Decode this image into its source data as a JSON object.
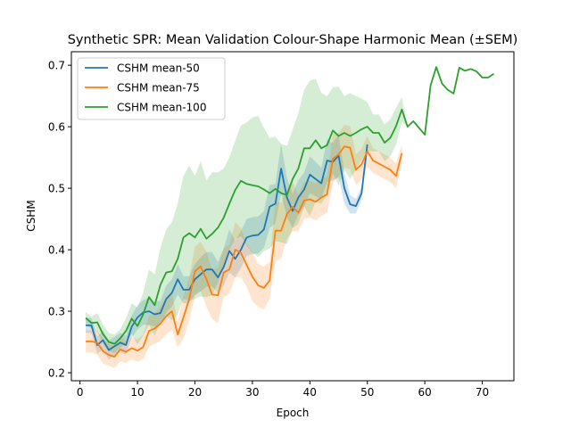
{
  "chart_data": {
    "type": "line",
    "title": "Synthetic SPR: Mean Validation Colour-Shape Harmonic Mean (±SEM)",
    "xlabel": "Epoch",
    "ylabel": "CSHM",
    "xlim": [
      -1.5,
      75.5
    ],
    "ylim": [
      0.187,
      0.722
    ],
    "xticks": [
      0,
      10,
      20,
      30,
      40,
      50,
      60,
      70
    ],
    "yticks": [
      0.2,
      0.3,
      0.4,
      0.5,
      0.6,
      0.7
    ],
    "grid": false,
    "legend_position": "upper-left",
    "series": [
      {
        "name": "CSHM mean-50",
        "color": "#1f77b4",
        "x": [
          1,
          2,
          3,
          4,
          5,
          6,
          7,
          8,
          9,
          10,
          11,
          12,
          13,
          14,
          15,
          16,
          17,
          18,
          19,
          20,
          21,
          22,
          23,
          24,
          25,
          26,
          27,
          28,
          29,
          30,
          31,
          32,
          33,
          34,
          35,
          36,
          37,
          38,
          39,
          40,
          41,
          42,
          43,
          44,
          45,
          46,
          47,
          48,
          49,
          50
        ],
        "y": [
          0.277,
          0.277,
          0.245,
          0.253,
          0.237,
          0.243,
          0.249,
          0.245,
          0.275,
          0.29,
          0.298,
          0.3,
          0.295,
          0.297,
          0.32,
          0.33,
          0.352,
          0.335,
          0.335,
          0.352,
          0.36,
          0.368,
          0.368,
          0.355,
          0.372,
          0.398,
          0.385,
          0.4,
          0.42,
          0.423,
          0.424,
          0.433,
          0.47,
          0.475,
          0.532,
          0.485,
          0.463,
          0.485,
          0.498,
          0.522,
          0.515,
          0.508,
          0.545,
          0.543,
          0.553,
          0.5,
          0.474,
          0.471,
          0.492,
          0.571
        ],
        "err": [
          0.012,
          0.012,
          0.014,
          0.015,
          0.016,
          0.015,
          0.016,
          0.015,
          0.018,
          0.02,
          0.02,
          0.022,
          0.02,
          0.02,
          0.022,
          0.022,
          0.025,
          0.022,
          0.022,
          0.025,
          0.028,
          0.028,
          0.028,
          0.025,
          0.03,
          0.035,
          0.03,
          0.03,
          0.03,
          0.03,
          0.03,
          0.03,
          0.035,
          0.032,
          0.04,
          0.032,
          0.028,
          0.028,
          0.028,
          0.03,
          0.028,
          0.025,
          0.035,
          0.03,
          0.035,
          0.025,
          0.015,
          0.012,
          0.01,
          0.005
        ]
      },
      {
        "name": "CSHM mean-75",
        "color": "#ff7f0e",
        "x": [
          1,
          2,
          3,
          4,
          5,
          6,
          7,
          8,
          9,
          10,
          11,
          12,
          13,
          14,
          15,
          16,
          17,
          18,
          19,
          20,
          21,
          22,
          23,
          24,
          25,
          26,
          27,
          28,
          29,
          30,
          31,
          32,
          33,
          34,
          35,
          36,
          37,
          38,
          39,
          40,
          41,
          42,
          43,
          44,
          45,
          46,
          47,
          48,
          49,
          50,
          51,
          52,
          53,
          54,
          55,
          56
        ],
        "y": [
          0.251,
          0.251,
          0.249,
          0.235,
          0.229,
          0.226,
          0.238,
          0.234,
          0.24,
          0.236,
          0.242,
          0.268,
          0.272,
          0.28,
          0.292,
          0.3,
          0.262,
          0.29,
          0.32,
          0.365,
          0.373,
          0.352,
          0.327,
          0.326,
          0.363,
          0.368,
          0.4,
          0.395,
          0.375,
          0.356,
          0.342,
          0.338,
          0.35,
          0.431,
          0.431,
          0.458,
          0.47,
          0.46,
          0.48,
          0.482,
          0.478,
          0.485,
          0.49,
          0.548,
          0.555,
          0.568,
          0.566,
          0.53,
          0.539,
          0.56,
          0.545,
          0.54,
          0.535,
          0.53,
          0.52,
          0.557
        ],
        "err": [
          0.018,
          0.018,
          0.02,
          0.02,
          0.018,
          0.018,
          0.02,
          0.018,
          0.018,
          0.018,
          0.02,
          0.025,
          0.025,
          0.028,
          0.03,
          0.03,
          0.02,
          0.035,
          0.035,
          0.04,
          0.04,
          0.045,
          0.04,
          0.045,
          0.04,
          0.04,
          0.045,
          0.04,
          0.035,
          0.04,
          0.035,
          0.035,
          0.03,
          0.05,
          0.045,
          0.04,
          0.04,
          0.03,
          0.03,
          0.03,
          0.03,
          0.03,
          0.03,
          0.04,
          0.035,
          0.035,
          0.035,
          0.025,
          0.025,
          0.025,
          0.02,
          0.02,
          0.02,
          0.02,
          0.02,
          0.015
        ]
      },
      {
        "name": "CSHM mean-100",
        "color": "#2ca02c",
        "x": [
          1,
          2,
          3,
          4,
          5,
          6,
          7,
          8,
          9,
          10,
          11,
          12,
          13,
          14,
          15,
          16,
          17,
          18,
          19,
          20,
          21,
          22,
          23,
          24,
          25,
          26,
          27,
          28,
          29,
          30,
          31,
          32,
          33,
          34,
          35,
          36,
          37,
          38,
          39,
          40,
          41,
          42,
          43,
          44,
          45,
          46,
          47,
          48,
          49,
          50,
          51,
          52,
          53,
          54,
          55,
          56,
          57,
          58,
          59,
          60,
          61,
          62,
          63,
          64,
          65,
          66,
          67,
          68,
          69,
          70,
          71,
          72
        ],
        "y": [
          0.289,
          0.281,
          0.282,
          0.263,
          0.25,
          0.247,
          0.256,
          0.268,
          0.288,
          0.276,
          0.295,
          0.323,
          0.31,
          0.343,
          0.363,
          0.365,
          0.385,
          0.42,
          0.427,
          0.42,
          0.434,
          0.418,
          0.426,
          0.436,
          0.452,
          0.475,
          0.497,
          0.512,
          0.507,
          0.505,
          0.503,
          0.498,
          0.492,
          0.499,
          0.492,
          0.489,
          0.515,
          0.532,
          0.565,
          0.565,
          0.578,
          0.565,
          0.57,
          0.594,
          0.585,
          0.59,
          0.585,
          0.59,
          0.596,
          0.6,
          0.59,
          0.59,
          0.574,
          0.582,
          0.601,
          0.628,
          0.6,
          0.609,
          0.598,
          0.587,
          0.667,
          0.697,
          0.67,
          0.66,
          0.654,
          0.696,
          0.691,
          0.694,
          0.69,
          0.68,
          0.68,
          0.686
        ],
        "err": [
          0.01,
          0.01,
          0.015,
          0.015,
          0.015,
          0.015,
          0.015,
          0.02,
          0.025,
          0.03,
          0.035,
          0.045,
          0.05,
          0.06,
          0.07,
          0.08,
          0.09,
          0.1,
          0.11,
          0.1,
          0.11,
          0.095,
          0.1,
          0.09,
          0.08,
          0.075,
          0.08,
          0.09,
          0.1,
          0.11,
          0.115,
          0.1,
          0.09,
          0.085,
          0.08,
          0.08,
          0.08,
          0.09,
          0.095,
          0.11,
          0.1,
          0.09,
          0.08,
          0.07,
          0.08,
          0.06,
          0.07,
          0.06,
          0.05,
          0.04,
          0.03,
          0.03,
          0.03,
          0.03,
          0.03,
          0.02,
          0,
          0,
          0,
          0,
          0,
          0,
          0,
          0,
          0,
          0,
          0,
          0,
          0,
          0,
          0,
          0
        ]
      }
    ]
  }
}
